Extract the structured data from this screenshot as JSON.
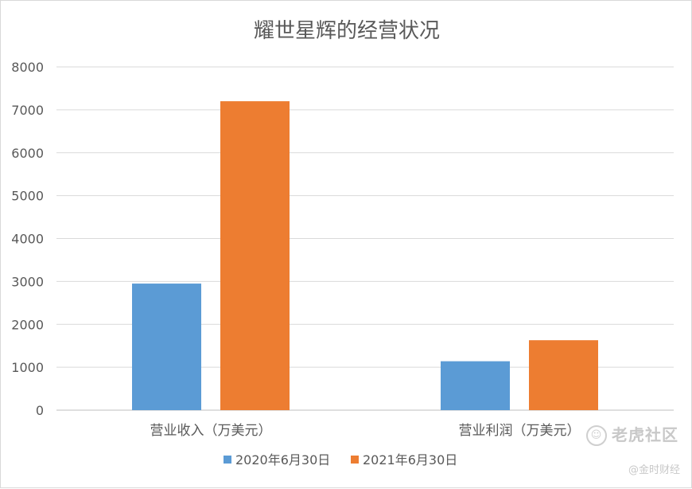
{
  "chart_data": {
    "type": "bar",
    "title": "耀世星辉的经营状况",
    "categories": [
      "营业收入（万美元）",
      "营业利润（万美元）"
    ],
    "series": [
      {
        "name": "2020年6月30日",
        "values": [
          2950,
          1140
        ],
        "color": "#5b9bd5"
      },
      {
        "name": "2021年6月30日",
        "values": [
          7200,
          1630
        ],
        "color": "#ed7d31"
      }
    ],
    "xlabel": "",
    "ylabel": "",
    "ylim": [
      0,
      8000
    ],
    "yticks": [
      0,
      1000,
      2000,
      3000,
      4000,
      5000,
      6000,
      7000,
      8000
    ],
    "grid": true,
    "legend_position": "bottom"
  },
  "watermark": {
    "logo_text": "老虎社区",
    "sub_text": "@金时财经"
  }
}
